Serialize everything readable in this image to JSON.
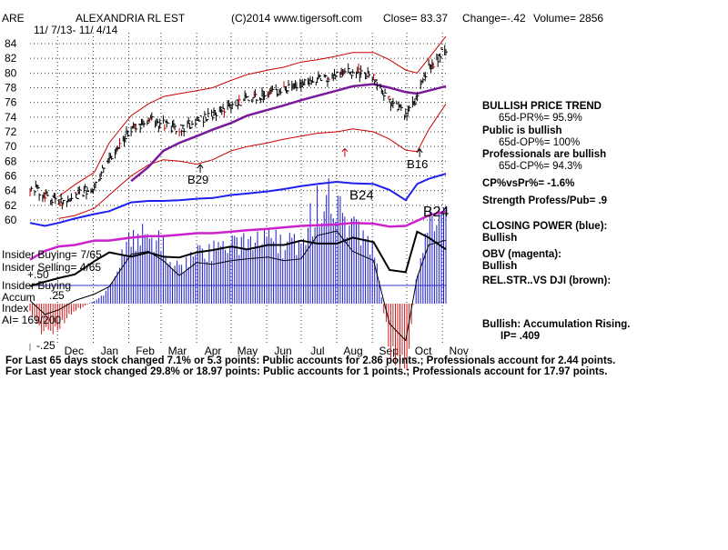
{
  "header": {
    "ticker": "ARE",
    "name": "ALEXANDRIA RL EST",
    "copyright": "(C)2014 www.tigersoft.com",
    "close_label": "Close= 83.37",
    "change_label": "Change=-.42",
    "volume_label": "Volume= 2856",
    "date_range": "11/ 7/13- 11/ 4/14"
  },
  "right_panel": {
    "bullish_price_trend": "BULLISH PRICE TREND",
    "pr_line": "65d-PR%= 95.9%",
    "public_bullish": "Public is bullish",
    "op_line": "65d-OP%= 100%",
    "pros_bullish": "Professionals are bullish",
    "cp_line": "65d-CP%= 94.3%",
    "cpvspr": "CP%vsPr%= -1.6%",
    "strength": "Strength Profess/Pub= .9",
    "closing_power_title": "CLOSING POWER (blue):",
    "closing_power_value": "Bullish",
    "obv_title": "OBV (magenta):",
    "obv_value": "Bullish",
    "relstr_title": "REL.STR..VS DJI (brown):",
    "accum_title": "Bullish: Accumulation Rising.",
    "ip_line": "IP= .409"
  },
  "insider": {
    "buying": "Insider Buying= 7/65",
    "selling": "Insider Selling= 4/65",
    "header": "Insider Buying",
    "accum": "Accum",
    "index": "Index",
    "ai_label": "AI= 169/200",
    "plus50": "+.50",
    "plus25": ".25",
    "minus25": "-.25"
  },
  "footer": {
    "line1": "For Last 65 days stock changed 7.1% or 5.3 points: Public accounts for 2.86 points.; Professionals account for 2.44 points.",
    "line2": "For Last year stock changed 29.8% or 18.97 points: Public accounts for 1 points.; Professionals account for 17.97 points."
  },
  "annotations": [
    {
      "text": "B29",
      "x": "2014-04-01",
      "y": 67.2
    },
    {
      "text": "B16",
      "x": "2014-10-09",
      "y": 69.3
    },
    {
      "text": "B24",
      "x": "2014-08-20",
      "y": 65.0
    },
    {
      "text": "B24",
      "x": "2014-10-23",
      "y": 62.7
    }
  ],
  "chart_data": {
    "type": "line",
    "title": "ALEXANDRIA RL EST",
    "x_tick_labels": [
      "Dec",
      "Jan",
      "Feb",
      "Mar",
      "Apr",
      "May",
      "Jun",
      "Jul",
      "Aug",
      "Sep",
      "Oct",
      "Nov"
    ],
    "x_tick_dates": [
      "2013-12-01",
      "2014-01-01",
      "2014-02-01",
      "2014-03-01",
      "2014-04-01",
      "2014-05-01",
      "2014-06-01",
      "2014-07-01",
      "2014-08-01",
      "2014-09-01",
      "2014-10-01",
      "2014-11-01"
    ],
    "xlim": [
      "2013-11-07",
      "2014-11-04"
    ],
    "ylim": [
      60,
      84
    ],
    "y_ticks": [
      60,
      62,
      64,
      66,
      68,
      70,
      72,
      74,
      76,
      78,
      80,
      82,
      84
    ],
    "grid": true,
    "x": [
      "2013-11-07",
      "2013-11-20",
      "2013-12-02",
      "2013-12-16",
      "2014-01-02",
      "2014-01-15",
      "2014-02-03",
      "2014-02-18",
      "2014-03-03",
      "2014-03-17",
      "2014-04-01",
      "2014-04-15",
      "2014-05-01",
      "2014-05-15",
      "2014-06-02",
      "2014-06-16",
      "2014-07-01",
      "2014-07-15",
      "2014-08-01",
      "2014-08-15",
      "2014-09-02",
      "2014-09-16",
      "2014-09-30",
      "2014-10-10",
      "2014-10-20",
      "2014-11-04"
    ],
    "series": [
      {
        "name": "price",
        "values": [
          64.5,
          63.6,
          62.2,
          63.2,
          64.6,
          68.5,
          72.5,
          73.6,
          73.0,
          72.2,
          73.5,
          74.5,
          75.5,
          76.5,
          77.2,
          77.8,
          78.6,
          79.0,
          79.7,
          80.2,
          79.6,
          76.0,
          74.3,
          76.8,
          80.6,
          83.4
        ]
      },
      {
        "name": "upper band",
        "values": [
          null,
          null,
          63.2,
          64.8,
          66.5,
          70.5,
          74.2,
          75.8,
          76.8,
          77.2,
          77.6,
          78.0,
          79.0,
          79.8,
          80.4,
          80.8,
          81.5,
          81.8,
          82.3,
          82.8,
          82.8,
          81.8,
          80.4,
          80.0,
          82.0,
          85.0
        ]
      },
      {
        "name": "lower band",
        "values": [
          null,
          null,
          60.2,
          60.6,
          61.6,
          63.4,
          66.0,
          67.5,
          68.2,
          68.0,
          67.6,
          68.2,
          69.4,
          70.0,
          70.5,
          71.0,
          71.4,
          71.8,
          72.0,
          72.4,
          72.0,
          71.0,
          69.5,
          69.3,
          72.3,
          75.8
        ]
      },
      {
        "name": "65-day ma",
        "values": [
          null,
          null,
          null,
          null,
          null,
          null,
          65.3,
          67.2,
          69.4,
          70.5,
          71.4,
          72.3,
          73.2,
          74.2,
          75.0,
          75.6,
          76.3,
          76.9,
          77.6,
          78.2,
          78.5,
          78.0,
          77.4,
          77.2,
          77.6,
          78.2
        ]
      },
      {
        "name": "closing power",
        "values": [
          59.6,
          59.2,
          59.6,
          60.2,
          60.8,
          61.2,
          62.4,
          62.6,
          62.6,
          62.7,
          62.9,
          63.0,
          63.4,
          63.6,
          63.9,
          64.2,
          64.6,
          64.9,
          65.2,
          65.0,
          64.9,
          64.1,
          62.7,
          64.9,
          65.6,
          66.3
        ]
      }
    ],
    "indicators": {
      "obv_magenta": [
        54.6,
        55.8,
        56.4,
        56.6,
        57.2,
        57.2,
        57.6,
        57.8,
        57.8,
        58.0,
        58.2,
        58.2,
        58.4,
        58.6,
        58.8,
        59.0,
        59.2,
        59.3,
        59.4,
        59.6,
        59.5,
        59.1,
        59.2,
        59.9,
        60.6,
        61.2
      ],
      "rel_strength_black": [
        51.0,
        51.6,
        52.1,
        52.6,
        54.4,
        55.6,
        55.0,
        55.6,
        55.0,
        54.9,
        55.6,
        55.9,
        56.4,
        56.0,
        56.6,
        56.6,
        57.2,
        56.8,
        56.8,
        57.6,
        57.0,
        53.2,
        52.9,
        58.4,
        57.6,
        56.0
      ],
      "accumulation_index": [
        -0.05,
        -0.2,
        -0.15,
        -0.05,
        0.02,
        0.1,
        0.45,
        0.48,
        0.38,
        0.22,
        0.36,
        0.34,
        0.38,
        0.4,
        0.42,
        0.38,
        0.4,
        0.65,
        0.7,
        0.48,
        0.38,
        -0.3,
        -0.48,
        0.2,
        0.55,
        0.6
      ],
      "accum_ylim": [
        -0.25,
        0.5
      ]
    }
  }
}
